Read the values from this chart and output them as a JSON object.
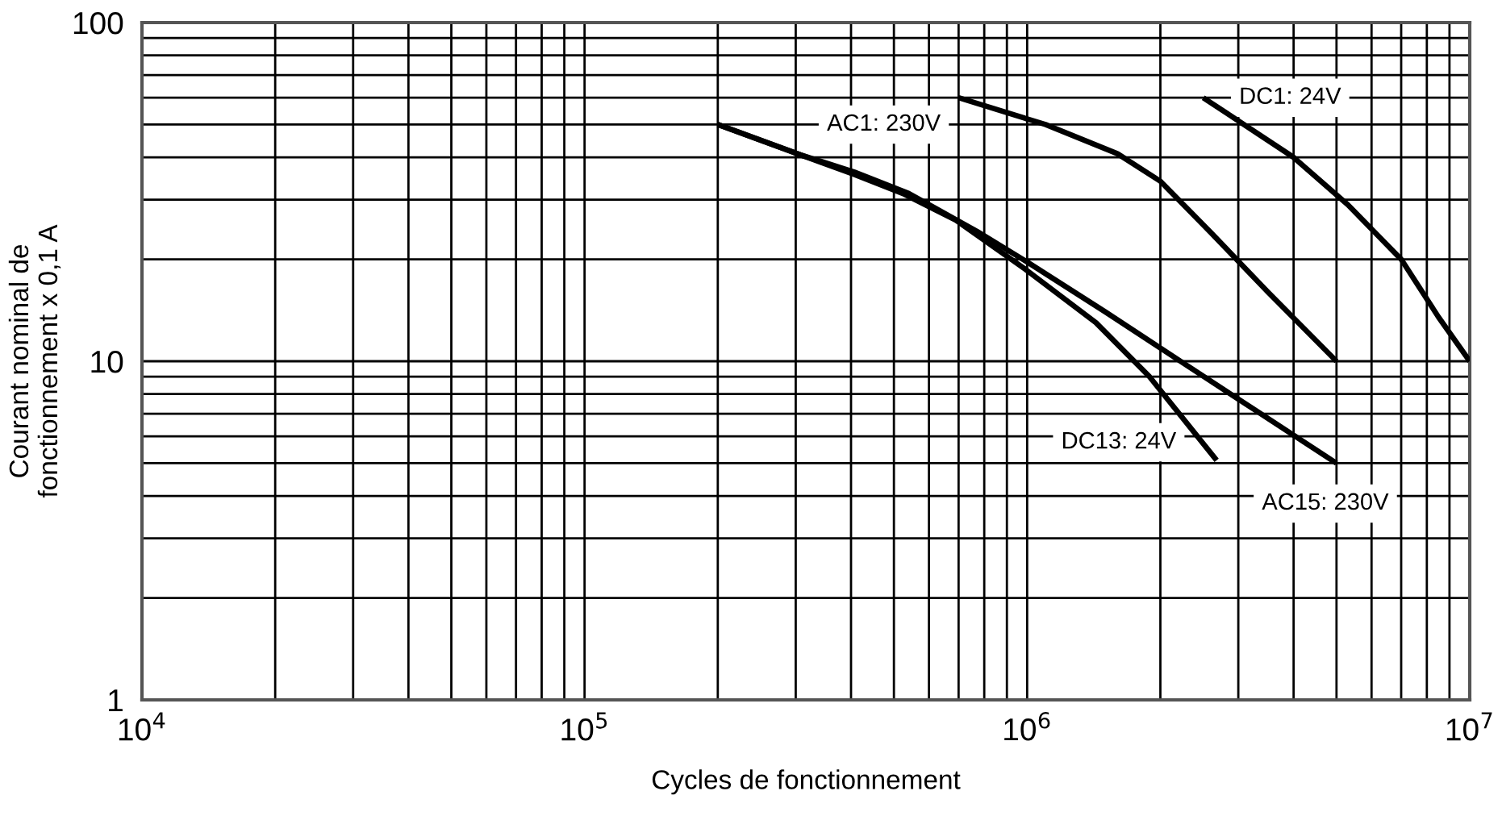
{
  "chart_data": {
    "type": "line",
    "xlabel": "Cycles de fonctionnement",
    "ylabel": "Courant nominal de\nfonctionnement x 0,1 A",
    "log": "xy",
    "grid": true,
    "marker": "none",
    "line_style": "solid",
    "xlim": [
      10000,
      10000000
    ],
    "xticks": [
      {
        "value": 10000,
        "label": "10$^{4}$"
      },
      {
        "value": 100000,
        "label": "10$^{5}$"
      },
      {
        "value": 1000000,
        "label": "10$^{6}$"
      },
      {
        "value": 10000000,
        "label": "10$^{7}$"
      }
    ],
    "ylim": [
      1,
      100
    ],
    "yticks": [
      1,
      10,
      100
    ],
    "series": [
      {
        "name": "AC1: 230V",
        "color": "#000000",
        "x": [
          700000,
          1100000,
          1600000,
          2000000,
          2600000,
          3500000,
          5000000
        ],
        "values": [
          60,
          50,
          41,
          34,
          24,
          16,
          10
        ]
      },
      {
        "name": "DC1: 24V",
        "color": "#000000",
        "x": [
          2500000,
          4000000,
          5300000,
          7000000,
          8500000,
          10000000
        ],
        "values": [
          60,
          40,
          29,
          20,
          13.5,
          10
        ]
      },
      {
        "name": "DC13: 24V",
        "color": "#000000",
        "x": [
          200000,
          307000,
          407000,
          523000,
          690000,
          990000,
          1430000,
          1890000,
          2680000
        ],
        "values": [
          50,
          40.7,
          35.6,
          31.3,
          26.1,
          18.7,
          13,
          9,
          5.1
        ]
      },
      {
        "name": "AC15: 230V",
        "color": "#000000",
        "x": [
          200000,
          307000,
          407000,
          540000,
          770000,
          990000,
          1500000,
          2300000,
          5000000
        ],
        "values": [
          50,
          40.7,
          36.2,
          31.3,
          24.2,
          19.8,
          14,
          9.7,
          5
        ]
      }
    ]
  }
}
